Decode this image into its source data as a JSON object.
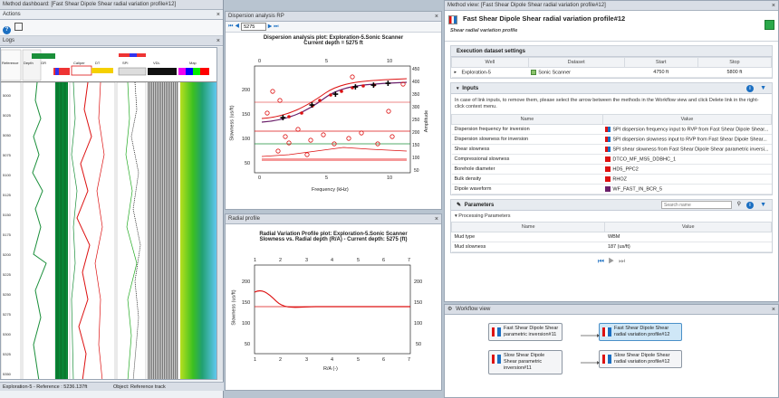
{
  "dashboard": {
    "title": "Method dashboard: [Fast Shear Dipole Shear radial variation profile#12]",
    "actions_label": "Actions",
    "logs_label": "Logs",
    "status_left": "Exploration-5 - Reference : 5236.137ft",
    "status_right": "Object: Reference track"
  },
  "dispersion": {
    "title": "Dispersion analysis RP",
    "depth_value": "5275",
    "plot_title_1": "Dispersion analysis plot: Exploration-5.Sonic Scanner",
    "plot_title_2": "Current depth   = 5275 ft",
    "xlabel": "Frequency (kHz)",
    "ylabel_left": "Slowness (us/ft)",
    "ylabel_right": "Amplitude",
    "x_ticks": [
      "0",
      "5",
      "10"
    ],
    "y_ticks_left": [
      "200",
      "150",
      "100",
      "50"
    ],
    "y_ticks_right": [
      "450",
      "400",
      "350",
      "300",
      "250",
      "200",
      "150",
      "100",
      "50"
    ]
  },
  "radial": {
    "title": "Radial profile",
    "plot_title_1": "Radial Variation Profile plot: Exploration-5.Sonic Scanner",
    "plot_title_2": "Slowness vs. Radial depth (R/A) - Current depth: 5275 (ft)",
    "xlabel": "R/A (-)",
    "ylabel_left": "Slowness (us/ft)",
    "x_ticks": [
      "1",
      "2",
      "3",
      "4",
      "5",
      "6",
      "7"
    ],
    "y_ticks": [
      "200",
      "150",
      "100",
      "50"
    ]
  },
  "method_view": {
    "panel_title": "Method view: [Fast Shear Dipole Shear radial variation profile#12]",
    "heading": "Fast Shear Dipole Shear radial variation profile#12",
    "subheading": "Shear radial variation profile",
    "exec_title": "Execution dataset settings",
    "exec_headers": [
      "Well",
      "Dataset",
      "Start",
      "Stop"
    ],
    "exec_row": [
      "Exploration-5",
      "Sonic Scanner",
      "4750 ft",
      "5800 ft"
    ],
    "inputs_title": "Inputs",
    "inputs_note": "In case of link inputs, to remove them, please select the arrow between the methods in the Workflow view and click Delete link in the right-click context menu.",
    "inputs_headers": [
      "Name",
      "Value"
    ],
    "inputs_rows": [
      [
        "Dispersion frequency for inversion",
        "SPI dispersion frequency input to RVP from Fast Shear Dipole Shear..."
      ],
      [
        "Dispersion slowness for inversion",
        "SPI dispersion slowness input to RVP from Fast Shear Dipole Shear..."
      ],
      [
        "Shear slowness",
        "SPI shear slowness from Fast Shear Dipole Shear parametric inversi..."
      ],
      [
        "Compressional slowness",
        "DTCO_MF_MS5_DDBHC_1"
      ],
      [
        "Borehole diameter",
        "HD5_PPC2"
      ],
      [
        "Bulk density",
        "RHOZ"
      ],
      [
        "Dipole waveform",
        "WF_FAST_IN_BCR_5"
      ]
    ],
    "params_title": "Parameters",
    "search_placeholder": "Search name",
    "proc_params_label": "Processing Parameters",
    "params_headers": [
      "Name",
      "Value"
    ],
    "params_rows": [
      [
        "Mud type",
        "WBM"
      ],
      [
        "Mud slowness",
        "187 (us/ft)"
      ]
    ]
  },
  "workflow": {
    "title": "Workflow view",
    "nodes": [
      "Fast Shear Dipole Shear parametric inversion#11",
      "Fast Shear Dipole Shear radial variation profile#12",
      "Slow Shear Dipole Shear parametric inversion#11",
      "Slow Shear Dipole Shear radial variation profile#12"
    ]
  },
  "track_labels": [
    "Reference",
    "Depth",
    "GR",
    "Caliper",
    "DT",
    "SPI",
    "VDL",
    "Map"
  ],
  "depth_ticks": [
    "5000",
    "5025",
    "5050",
    "5075",
    "5100",
    "5125",
    "5150",
    "5175",
    "5200",
    "5225",
    "5250",
    "5275",
    "5300",
    "5325",
    "5350"
  ],
  "colors": {
    "accent": "#1b6fc2",
    "grid_green": "#1a8f3a",
    "red_curve": "#d11",
    "purple_curve": "#6a1f6a"
  }
}
